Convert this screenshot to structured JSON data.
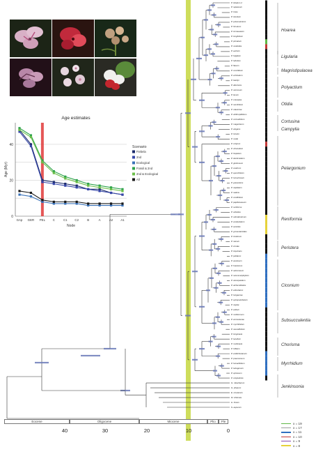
{
  "photos": {
    "panels": [
      {
        "name": "photo-pelargonium-pink",
        "bg": "#1c2416",
        "flower": "#d8b0c6",
        "accent": "#b54d7b"
      },
      {
        "name": "photo-pelargonium-red",
        "bg": "#2a1410",
        "flower": "#c12a3c",
        "accent": "#e14b5a"
      },
      {
        "name": "photo-pelargonium-cluster",
        "bg": "#182818",
        "flower": "#c0a080",
        "accent": "#6f8b3a"
      },
      {
        "name": "photo-pelargonium-purple",
        "bg": "#221018",
        "flower": "#b887a8",
        "accent": "#5c2c48"
      },
      {
        "name": "photo-pelargonium-white",
        "bg": "#20261a",
        "flower": "#e6d6df",
        "accent": "#c77b9b"
      },
      {
        "name": "photo-pelargonium-redwhite",
        "bg": "#2a2a24",
        "flower": "#f0f0ee",
        "accent": "#c3262e"
      }
    ]
  },
  "inset_chart": {
    "chart_data": {
      "type": "line",
      "title": "Age estimates",
      "xlabel": "Node",
      "ylabel": "Age (Myr)",
      "categories": [
        "GAp",
        "GER",
        "PEL",
        "C",
        "C1",
        "C2",
        "B",
        "A",
        "A2",
        "A1"
      ],
      "ylim": [
        0,
        52
      ],
      "yticks": [
        0,
        20,
        40
      ],
      "legend_title": "Scenario",
      "legend_position": "right",
      "series": [
        {
          "name": "Fiebela",
          "color": "#1b2a6b",
          "values": [
            48,
            40,
            20,
            19,
            18,
            17,
            15,
            15,
            13,
            12
          ]
        },
        {
          "name": "2nd",
          "color": "#3747a8",
          "values": [
            47,
            39,
            19,
            18,
            17,
            16,
            15,
            14,
            13,
            12
          ]
        },
        {
          "name": "Ecological",
          "color": "#3a72b8",
          "values": [
            12,
            11,
            8,
            7,
            7,
            7,
            6,
            6,
            6,
            6
          ]
        },
        {
          "name": "Fossil & 2nd",
          "color": "#2ea34b",
          "values": [
            49,
            45,
            31,
            25,
            22,
            20,
            18,
            17,
            16,
            15
          ]
        },
        {
          "name": "2nd & Ecological",
          "color": "#6cbf4a",
          "values": [
            48,
            44,
            30,
            24,
            21,
            19,
            17,
            16,
            15,
            14
          ]
        },
        {
          "name": "All",
          "color": "#1a1a1a",
          "values": [
            14,
            13,
            9,
            8,
            8,
            8,
            7,
            7,
            7,
            7
          ]
        }
      ],
      "highlight_category": "PEL",
      "highlight_color": "#e03a3a"
    }
  },
  "phylogeny": {
    "tree_title": "",
    "highlight_color": "#c9d94a",
    "clades": [
      {
        "label": "Hoarea"
      },
      {
        "label": "Ligularia"
      },
      {
        "label": "Magnistipulacea"
      },
      {
        "label": "Polyactium"
      },
      {
        "label": "Otidia"
      },
      {
        "label": "Cortusina"
      },
      {
        "label": "Campylia"
      },
      {
        "label": "Pelargonium"
      },
      {
        "label": "Reniformia"
      },
      {
        "label": "Peristera"
      },
      {
        "label": "Ciconium"
      },
      {
        "label": "Subsucculentia"
      },
      {
        "label": "Chorisma"
      },
      {
        "label": "Myrrhidium"
      },
      {
        "label": "Jenkinsonia"
      }
    ],
    "tip_labels": [
      "P. lobatum 2",
      "P. rapaceum",
      "P. triste",
      "P. luteolum",
      "P. pulverulentum",
      "P. hirsutum",
      "P. incrassatum",
      "P. longifolium",
      "P. pinnatum",
      "P. oxaloides",
      "P. auritum",
      "P. fulgidum",
      "P. tabulare",
      "P. flavum",
      "P. cucullatum",
      "P. echinatum",
      "P. barklyi",
      "P. alternans",
      "P. carnosum",
      "P. laxum",
      "P. crassipes",
      "P. nervifolium",
      "P. otaviense",
      "P. sibthorpiifolium",
      "P. cortusifolium",
      "P. magenteum",
      "P. elegans",
      "P. tricolor",
      "P. ovale",
      "P. crispum",
      "P. citronellum",
      "P. hispidum",
      "P. denticulatum",
      "P. glutinosum",
      "P. scabrum",
      "P. quercifolium",
      "P. tomentosum",
      "P. graveolens",
      "P. capitatum",
      "P. radens",
      "P. cordifolium",
      "P. papilionaceum",
      "P. reniforme",
      "P. sidoides",
      "P. odoratissimum",
      "P. exstipulatum",
      "P. australe",
      "P. grossularioides",
      "P. inodorum",
      "P. nanum",
      "P. zonale",
      "P. inquinans",
      "P. peltatum",
      "P. acetosum",
      "P. frutetorum",
      "P. salmoneum",
      "P. ranunculophyllum",
      "P. stenopetalum",
      "P. alchemilloides",
      "P. articulatum",
      "P. tongaense",
      "P. quinquelobatum",
      "P. caylae",
      "P. aridum",
      "P. mollicomum",
      "P. worcesterae",
      "P. myrrhifolium",
      "P. caucalifolium",
      "P. longicaule",
      "P. tenellum",
      "P. multicaule",
      "P. trifidum",
      "P. endlicherianum",
      "P. praemorsum",
      "P. fumariifolium",
      "P. tetragonum",
      "P. spinosum",
      "P. cotyledonis",
      "G. robertianum",
      "G. phaeum",
      "E. cicutarium",
      "M. chilensis",
      "H. hirtum",
      "S. asperum"
    ],
    "axis": {
      "epochs": [
        {
          "label": "Eocene"
        },
        {
          "label": "Oligocene"
        },
        {
          "label": "Miocene"
        },
        {
          "label": "Plio"
        },
        {
          "label": "Ple"
        }
      ],
      "ticks": [
        "40",
        "30",
        "20",
        "10",
        "0"
      ]
    },
    "chromosome_legend": [
      {
        "label": "x = 19",
        "color": "#5fb846"
      },
      {
        "label": "x = 17",
        "color": "#9c9c9c"
      },
      {
        "label": "x = 11",
        "color": "#2f6fc0"
      },
      {
        "label": "x = 10",
        "color": "#c33a38"
      },
      {
        "label": "x = 9",
        "color": "#8a4ab1"
      },
      {
        "label": "x = 8",
        "color": "#e6d23a"
      }
    ]
  }
}
